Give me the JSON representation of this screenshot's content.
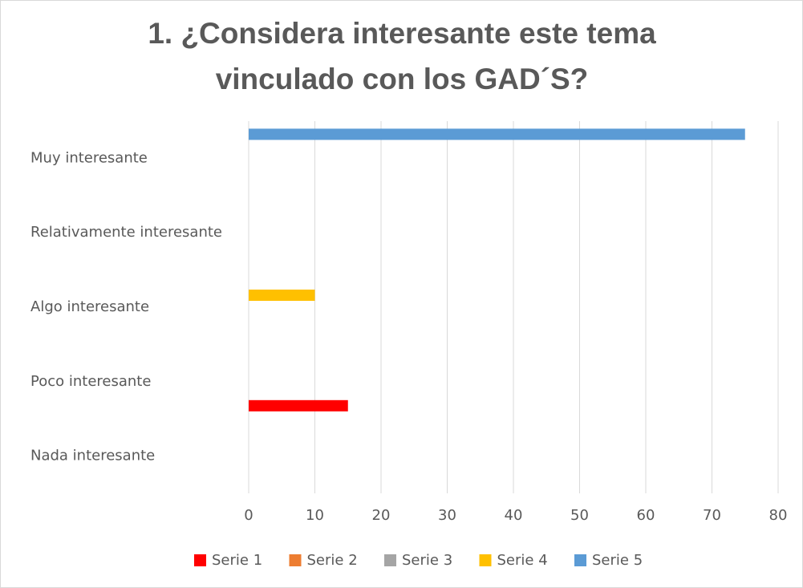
{
  "chart_data": {
    "type": "bar",
    "orientation": "horizontal",
    "title": "1. ¿Considera interesante este tema vinculado con los GAD´S?",
    "categories": [
      "Muy interesante",
      "Relativamente interesante",
      "Algo interesante",
      "Poco interesante",
      "Nada interesante"
    ],
    "series": [
      {
        "name": "Serie 1",
        "color": "#ff0000",
        "values": [
          0,
          0,
          0,
          15,
          0
        ]
      },
      {
        "name": "Serie 2",
        "color": "#ed7d31",
        "values": [
          0,
          0,
          0,
          0,
          0
        ]
      },
      {
        "name": "Serie 3",
        "color": "#a5a5a5",
        "values": [
          0,
          0,
          0,
          0,
          0
        ]
      },
      {
        "name": "Serie 4",
        "color": "#ffc000",
        "values": [
          0,
          0,
          10,
          0,
          0
        ]
      },
      {
        "name": "Serie 5",
        "color": "#5b9bd5",
        "values": [
          75,
          0,
          0,
          0,
          0
        ]
      }
    ],
    "xlim": [
      0,
      80
    ],
    "xticks": [
      0,
      10,
      20,
      30,
      40,
      50,
      60,
      70,
      80
    ],
    "grid": true,
    "legend": "bottom"
  }
}
